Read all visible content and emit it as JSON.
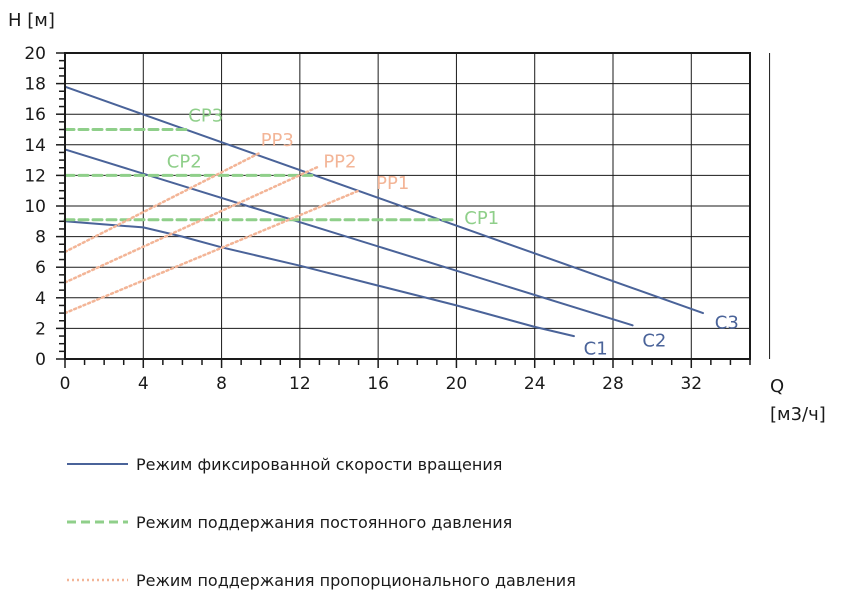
{
  "chart_data": {
    "type": "line",
    "ylabel": "H [м]",
    "xlabel_name": "Q",
    "xlabel_unit": "[м3/ч]",
    "xlim": [
      0,
      35
    ],
    "ylim": [
      0,
      20
    ],
    "x_ticks": [
      0,
      4,
      8,
      12,
      16,
      20,
      24,
      28,
      32
    ],
    "y_ticks": [
      0,
      2,
      4,
      6,
      8,
      10,
      12,
      14,
      16,
      18,
      20
    ],
    "grid": true,
    "colors": {
      "fixed": "#4a6399",
      "constant": "#8fcf8a",
      "proportional": "#f3b597"
    },
    "series": [
      {
        "name": "C1",
        "style": "fixed",
        "points": [
          [
            0,
            9.0
          ],
          [
            2,
            8.8
          ],
          [
            4,
            8.6
          ],
          [
            6,
            8.0
          ],
          [
            8,
            7.3
          ],
          [
            12,
            6.1
          ],
          [
            16,
            4.8
          ],
          [
            20,
            3.5
          ],
          [
            24,
            2.1
          ],
          [
            26,
            1.5
          ]
        ],
        "label_at": [
          26.5,
          0.7
        ]
      },
      {
        "name": "C2",
        "style": "fixed",
        "points": [
          [
            0,
            13.7
          ],
          [
            29,
            2.2
          ]
        ],
        "label_at": [
          29.5,
          1.2
        ]
      },
      {
        "name": "C3",
        "style": "fixed",
        "points": [
          [
            0,
            17.8
          ],
          [
            32.6,
            3.0
          ]
        ],
        "label_at": [
          33.2,
          2.4
        ]
      },
      {
        "name": "CP1",
        "style": "constant",
        "points": [
          [
            0,
            9.1
          ],
          [
            20,
            9.1
          ]
        ],
        "label_at": [
          20.4,
          9.2
        ]
      },
      {
        "name": "CP2",
        "style": "constant",
        "points": [
          [
            0,
            12.0
          ],
          [
            12.8,
            12.0
          ]
        ],
        "label_at": [
          5.2,
          12.9
        ]
      },
      {
        "name": "CP3",
        "style": "constant",
        "points": [
          [
            0,
            15.0
          ],
          [
            6.2,
            15.0
          ]
        ],
        "label_at": [
          6.3,
          15.9
        ]
      },
      {
        "name": "PP1",
        "style": "proportional",
        "points": [
          [
            0,
            3.0
          ],
          [
            15,
            11.0
          ]
        ],
        "label_at": [
          15.9,
          11.5
        ]
      },
      {
        "name": "PP2",
        "style": "proportional",
        "points": [
          [
            0,
            5.0
          ],
          [
            13,
            12.6
          ]
        ],
        "label_at": [
          13.2,
          12.9
        ]
      },
      {
        "name": "PP3",
        "style": "proportional",
        "points": [
          [
            0,
            7.0
          ],
          [
            10,
            13.5
          ]
        ],
        "label_at": [
          10.0,
          14.3
        ]
      }
    ]
  },
  "legend": [
    {
      "style": "fixed",
      "label": "Режим фиксированной скорости вращения"
    },
    {
      "style": "constant",
      "label": "Режим поддержания постоянного давления"
    },
    {
      "style": "proportional",
      "label": "Режим поддержания пропорционального давления"
    }
  ]
}
